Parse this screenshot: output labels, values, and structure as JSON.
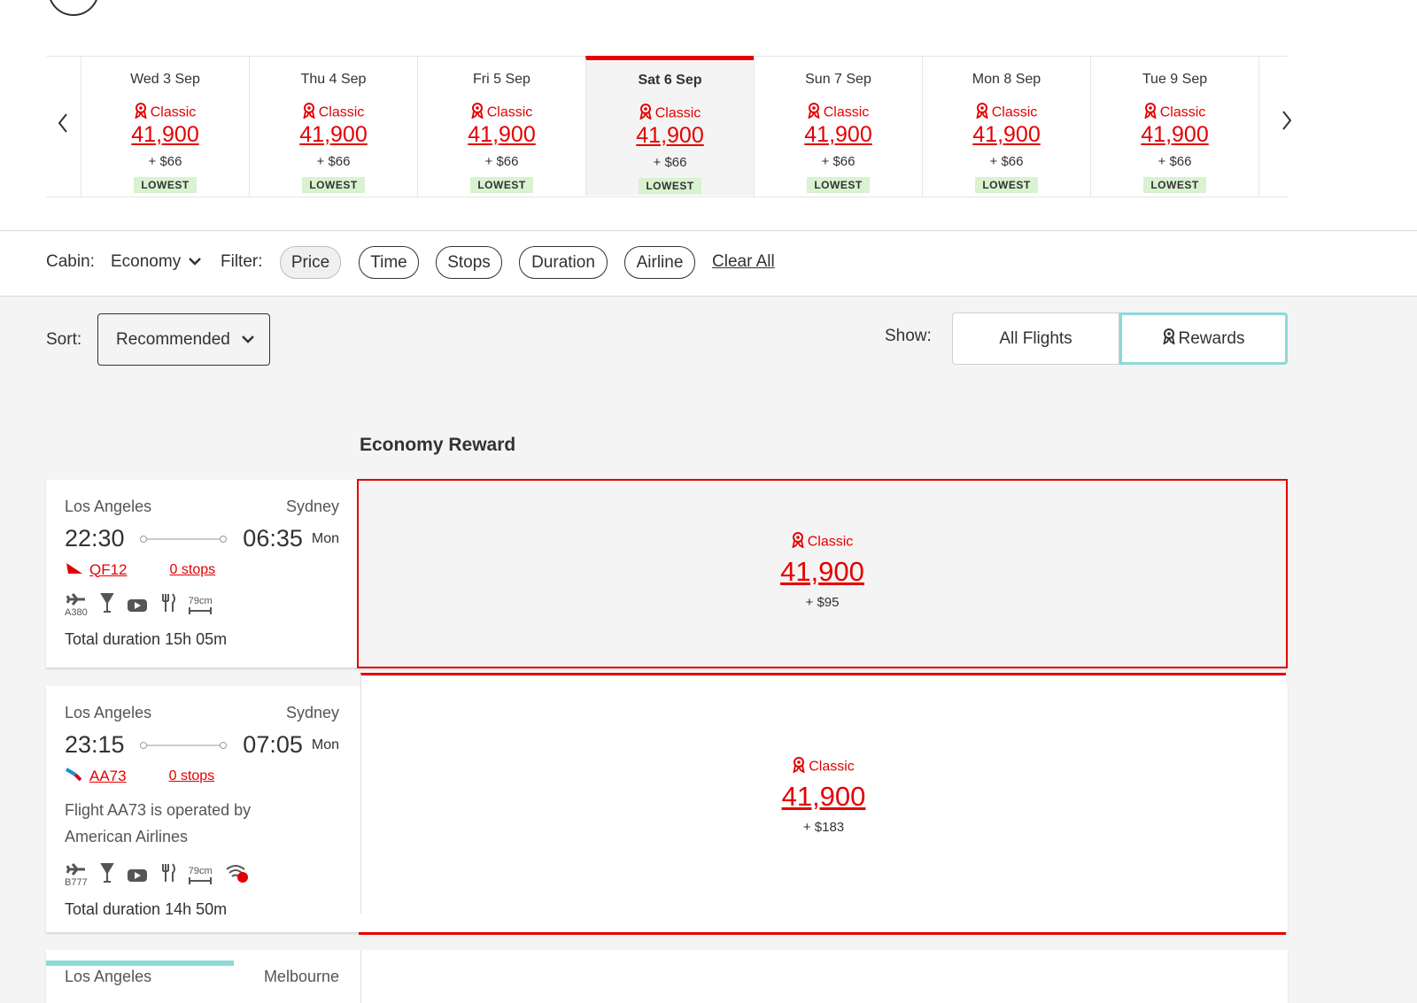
{
  "date_strip": {
    "days": [
      {
        "date": "Wed 3 Sep",
        "fare_type": "Classic",
        "points": "41,900",
        "tax": "+ $66",
        "badge": "LOWEST"
      },
      {
        "date": "Thu 4 Sep",
        "fare_type": "Classic",
        "points": "41,900",
        "tax": "+ $66",
        "badge": "LOWEST"
      },
      {
        "date": "Fri 5 Sep",
        "fare_type": "Classic",
        "points": "41,900",
        "tax": "+ $66",
        "badge": "LOWEST"
      },
      {
        "date": "Sat 6 Sep",
        "fare_type": "Classic",
        "points": "41,900",
        "tax": "+ $66",
        "badge": "LOWEST",
        "selected": true
      },
      {
        "date": "Sun 7 Sep",
        "fare_type": "Classic",
        "points": "41,900",
        "tax": "+ $66",
        "badge": "LOWEST"
      },
      {
        "date": "Mon 8 Sep",
        "fare_type": "Classic",
        "points": "41,900",
        "tax": "+ $66",
        "badge": "LOWEST"
      },
      {
        "date": "Tue 9 Sep",
        "fare_type": "Classic",
        "points": "41,900",
        "tax": "+ $66",
        "badge": "LOWEST"
      }
    ]
  },
  "filters": {
    "cabin_label": "Cabin:",
    "cabin": "Economy",
    "filter_label": "Filter:",
    "options": [
      "Price",
      "Time",
      "Stops",
      "Duration",
      "Airline"
    ],
    "clear": "Clear All"
  },
  "sort": {
    "label": "Sort:",
    "value": "Recommended"
  },
  "show": {
    "label": "Show:",
    "options": [
      "All Flights",
      "Rewards"
    ]
  },
  "section_title": "Economy Reward",
  "flights": [
    {
      "origin": "Los Angeles",
      "destination": "Sydney",
      "depart": "22:30",
      "arrive": "06:35",
      "arrive_day": "Mon",
      "flight": "QF12",
      "stops": "0 stops",
      "aircraft": "A380",
      "seat": "79cm",
      "duration": "Total duration 15h 05m",
      "fare": {
        "type": "Classic",
        "points": "41,900",
        "tax": "+ $95"
      }
    },
    {
      "origin": "Los Angeles",
      "destination": "Sydney",
      "depart": "23:15",
      "arrive": "07:05",
      "arrive_day": "Mon",
      "flight": "AA73",
      "stops": "0 stops",
      "note": "Flight AA73 is operated by American Airlines",
      "aircraft": "B777",
      "seat": "79cm",
      "duration": "Total duration 14h 50m",
      "fare": {
        "type": "Classic",
        "points": "41,900",
        "tax": "+ $183"
      }
    },
    {
      "origin": "Los Angeles",
      "destination": "Melbourne"
    }
  ]
}
